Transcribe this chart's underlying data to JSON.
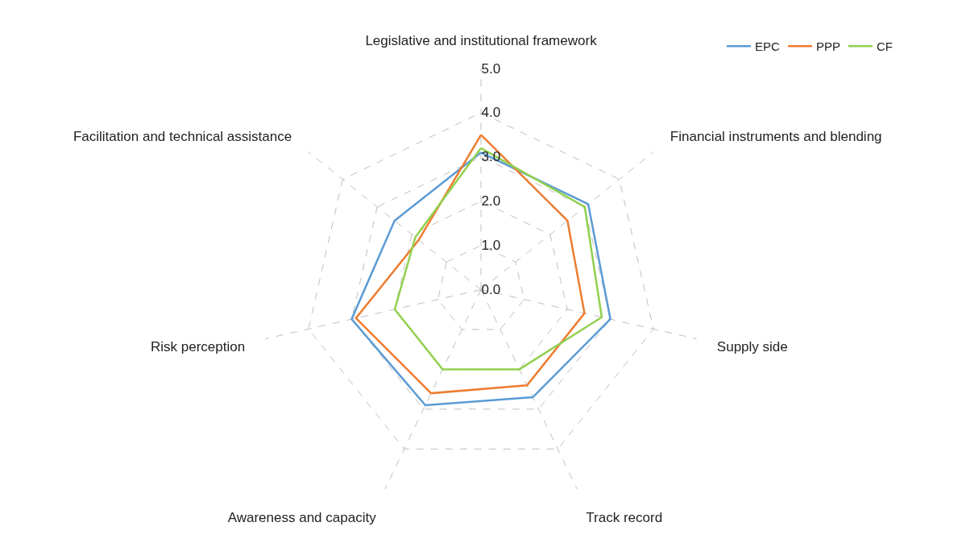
{
  "chart_data": {
    "type": "radar",
    "categories": [
      "Legislative and institutional framework",
      "Financial instruments and blending",
      "Supply side",
      "Track record",
      "Awareness and capacity",
      "Risk perception",
      "Facilitation and technical assistance"
    ],
    "series": [
      {
        "name": "EPC",
        "color": "#5b9bd5",
        "values": [
          3.1,
          3.1,
          3.0,
          2.7,
          2.9,
          3.0,
          2.5
        ]
      },
      {
        "name": "PPP",
        "color": "#ed7d31",
        "values": [
          3.5,
          2.5,
          2.4,
          2.4,
          2.6,
          2.9,
          1.8
        ]
      },
      {
        "name": "CF",
        "color": "#92d050",
        "values": [
          3.2,
          3.0,
          2.8,
          2.0,
          2.0,
          2.0,
          1.9
        ]
      }
    ],
    "ylim": [
      0,
      5
    ],
    "yticks": [
      {
        "value": 0,
        "label": "0.0"
      },
      {
        "value": 1,
        "label": "1.0"
      },
      {
        "value": 2,
        "label": "2.0"
      },
      {
        "value": 3,
        "label": "3.0"
      },
      {
        "value": 4,
        "label": "4.0"
      },
      {
        "value": 5,
        "label": "5.0"
      }
    ],
    "grid": true,
    "legend": "top right",
    "marker": "none",
    "line_style": "solid"
  }
}
